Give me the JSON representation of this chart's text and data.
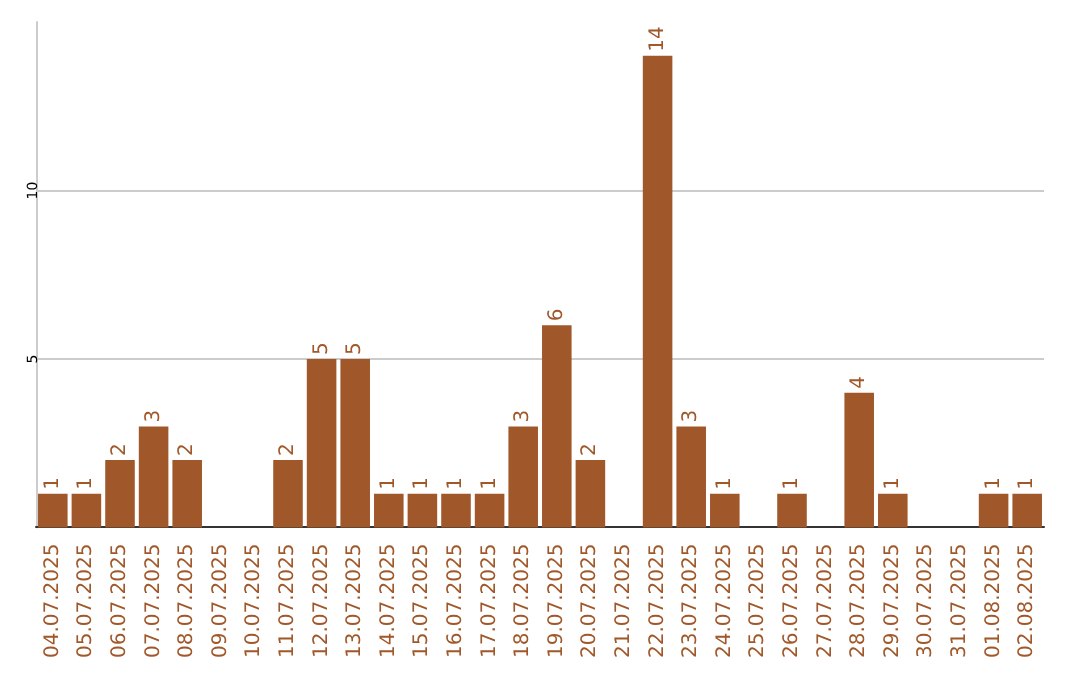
{
  "chart_data": {
    "type": "bar",
    "categories": [
      "04.07.2025",
      "05.07.2025",
      "06.07.2025",
      "07.07.2025",
      "08.07.2025",
      "09.07.2025",
      "10.07.2025",
      "11.07.2025",
      "12.07.2025",
      "13.07.2025",
      "14.07.2025",
      "15.07.2025",
      "16.07.2025",
      "17.07.2025",
      "18.07.2025",
      "19.07.2025",
      "20.07.2025",
      "21.07.2025",
      "22.07.2025",
      "23.07.2025",
      "24.07.2025",
      "25.07.2025",
      "26.07.2025",
      "27.07.2025",
      "28.07.2025",
      "29.07.2025",
      "30.07.2025",
      "31.07.2025",
      "01.08.2025",
      "02.08.2025"
    ],
    "values": [
      1,
      1,
      2,
      3,
      2,
      0,
      0,
      2,
      5,
      5,
      1,
      1,
      1,
      1,
      3,
      6,
      2,
      0,
      14,
      3,
      1,
      0,
      1,
      0,
      4,
      1,
      0,
      0,
      1,
      1
    ],
    "value_labels": [
      "1",
      "1",
      "2",
      "3",
      "2",
      null,
      null,
      "2",
      "5",
      "5",
      "1",
      "1",
      "1",
      "1",
      "3",
      "6",
      "2",
      null,
      "14",
      "3",
      "1",
      null,
      "1",
      null,
      "4",
      "1",
      null,
      null,
      "1",
      "1"
    ],
    "color": "#a0582a",
    "ylim": [
      0,
      15
    ],
    "yticks": [
      5,
      10
    ],
    "grid": "y"
  }
}
